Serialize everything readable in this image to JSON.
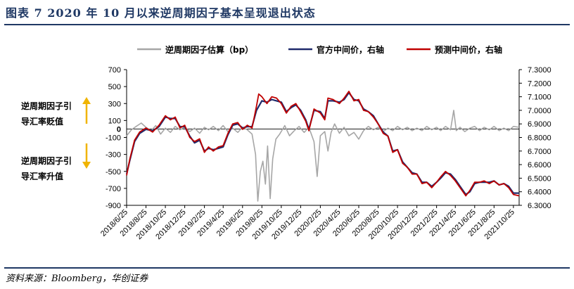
{
  "header": {
    "title": "图表 7   2020 年 10 月以来逆周期因子基本呈现退出状态"
  },
  "footer": {
    "source": "资料来源：Bloomberg，华创证券"
  },
  "annotations": {
    "upper": [
      "逆周期因子引",
      "导汇率贬值"
    ],
    "lower": [
      "逆周期因子引",
      "导汇率升值"
    ],
    "arrow_color": "#f0b400"
  },
  "chart_data": {
    "type": "line",
    "title": "",
    "xlabel": "",
    "ylabel": "",
    "legend_position": "top",
    "grid": false,
    "x_tick_labels": [
      "2018/6/25",
      "2018/8/25",
      "2018/10/25",
      "2018/12/25",
      "2019/2/25",
      "2019/4/25",
      "2019/6/25",
      "2019/8/25",
      "2019/10/25",
      "2019/12/25",
      "2020/2/25",
      "2020/4/25",
      "2020/6/25",
      "2020/8/25",
      "2020/10/25",
      "2020/12/25",
      "2021/2/25",
      "2021/4/25",
      "2021/6/25",
      "2021/8/25",
      "2021/10/25"
    ],
    "x_range": [
      "2018-06-25",
      "2021-11-12"
    ],
    "y_left": {
      "min": -900,
      "max": 700,
      "step": 100,
      "ticks": [
        700,
        500,
        300,
        100,
        -100,
        -300,
        -500,
        -700,
        -900
      ],
      "extra_tick": 0
    },
    "y_right": {
      "min": 6.3,
      "max": 7.3,
      "step": 0.1,
      "ticks": [
        "7.3000",
        "7.2000",
        "7.1000",
        "7.0000",
        "6.9000",
        "6.8000",
        "6.7000",
        "6.6000",
        "6.5000",
        "6.4000",
        "6.3000"
      ]
    },
    "series": [
      {
        "name": "逆周期因子估算（bp）",
        "axis": "left",
        "color": "#a6a6a6",
        "points": [
          [
            "2018-06-25",
            -80
          ],
          [
            "2018-07-10",
            -10
          ],
          [
            "2018-07-25",
            30
          ],
          [
            "2018-08-10",
            70
          ],
          [
            "2018-08-25",
            20
          ],
          [
            "2018-09-10",
            -20
          ],
          [
            "2018-09-25",
            40
          ],
          [
            "2018-10-10",
            -60
          ],
          [
            "2018-10-25",
            10
          ],
          [
            "2018-11-10",
            -40
          ],
          [
            "2018-11-25",
            30
          ],
          [
            "2018-12-10",
            -10
          ],
          [
            "2018-12-25",
            20
          ],
          [
            "2019-01-10",
            -30
          ],
          [
            "2019-01-25",
            10
          ],
          [
            "2019-02-10",
            -50
          ],
          [
            "2019-02-25",
            20
          ],
          [
            "2019-03-10",
            -10
          ],
          [
            "2019-03-25",
            30
          ],
          [
            "2019-04-10",
            -20
          ],
          [
            "2019-04-25",
            40
          ],
          [
            "2019-05-10",
            -30
          ],
          [
            "2019-05-25",
            10
          ],
          [
            "2019-06-10",
            -40
          ],
          [
            "2019-06-25",
            20
          ],
          [
            "2019-07-10",
            -10
          ],
          [
            "2019-07-25",
            -60
          ],
          [
            "2019-08-05",
            -300
          ],
          [
            "2019-08-12",
            -850
          ],
          [
            "2019-08-20",
            -500
          ],
          [
            "2019-08-28",
            -380
          ],
          [
            "2019-09-05",
            -650
          ],
          [
            "2019-09-12",
            -200
          ],
          [
            "2019-09-20",
            -820
          ],
          [
            "2019-09-28",
            -350
          ],
          [
            "2019-10-08",
            -120
          ],
          [
            "2019-10-20",
            -60
          ],
          [
            "2019-11-05",
            40
          ],
          [
            "2019-11-20",
            -80
          ],
          [
            "2019-12-05",
            -20
          ],
          [
            "2019-12-20",
            30
          ],
          [
            "2020-01-05",
            -40
          ],
          [
            "2020-01-20",
            20
          ],
          [
            "2020-02-05",
            -150
          ],
          [
            "2020-02-15",
            -560
          ],
          [
            "2020-02-25",
            -80
          ],
          [
            "2020-03-10",
            -30
          ],
          [
            "2020-03-20",
            -260
          ],
          [
            "2020-03-30",
            -40
          ],
          [
            "2020-04-10",
            60
          ],
          [
            "2020-04-25",
            -50
          ],
          [
            "2020-05-10",
            20
          ],
          [
            "2020-05-25",
            -80
          ],
          [
            "2020-06-10",
            -40
          ],
          [
            "2020-06-25",
            -120
          ],
          [
            "2020-07-10",
            -20
          ],
          [
            "2020-07-25",
            30
          ],
          [
            "2020-08-10",
            -10
          ],
          [
            "2020-08-25",
            20
          ],
          [
            "2020-09-10",
            -30
          ],
          [
            "2020-09-25",
            10
          ],
          [
            "2020-10-10",
            -20
          ],
          [
            "2020-10-25",
            30
          ],
          [
            "2020-11-10",
            -10
          ],
          [
            "2020-11-25",
            20
          ],
          [
            "2020-12-10",
            -20
          ],
          [
            "2020-12-25",
            10
          ],
          [
            "2021-01-10",
            -20
          ],
          [
            "2021-01-25",
            30
          ],
          [
            "2021-02-10",
            -10
          ],
          [
            "2021-02-25",
            20
          ],
          [
            "2021-03-10",
            -20
          ],
          [
            "2021-03-25",
            30
          ],
          [
            "2021-04-10",
            -10
          ],
          [
            "2021-04-20",
            220
          ],
          [
            "2021-04-28",
            -20
          ],
          [
            "2021-05-10",
            20
          ],
          [
            "2021-05-25",
            -30
          ],
          [
            "2021-06-10",
            10
          ],
          [
            "2021-06-25",
            30
          ],
          [
            "2021-07-10",
            -20
          ],
          [
            "2021-07-25",
            20
          ],
          [
            "2021-08-10",
            -10
          ],
          [
            "2021-08-25",
            30
          ],
          [
            "2021-09-10",
            -20
          ],
          [
            "2021-09-25",
            10
          ],
          [
            "2021-10-10",
            -20
          ],
          [
            "2021-10-25",
            30
          ],
          [
            "2021-11-12",
            20
          ]
        ]
      },
      {
        "name": "官方中间价，右轴",
        "axis": "right",
        "color": "#1f2a6b",
        "points": [
          [
            "2018-06-25",
            6.53
          ],
          [
            "2018-07-05",
            6.63
          ],
          [
            "2018-07-20",
            6.77
          ],
          [
            "2018-08-05",
            6.83
          ],
          [
            "2018-08-25",
            6.86
          ],
          [
            "2018-09-15",
            6.85
          ],
          [
            "2018-10-05",
            6.88
          ],
          [
            "2018-10-25",
            6.95
          ],
          [
            "2018-11-10",
            6.94
          ],
          [
            "2018-11-25",
            6.94
          ],
          [
            "2018-12-10",
            6.88
          ],
          [
            "2018-12-25",
            6.88
          ],
          [
            "2019-01-10",
            6.81
          ],
          [
            "2019-01-25",
            6.76
          ],
          [
            "2019-02-10",
            6.78
          ],
          [
            "2019-02-25",
            6.7
          ],
          [
            "2019-03-10",
            6.72
          ],
          [
            "2019-03-25",
            6.71
          ],
          [
            "2019-04-10",
            6.72
          ],
          [
            "2019-04-25",
            6.73
          ],
          [
            "2019-05-10",
            6.82
          ],
          [
            "2019-05-25",
            6.89
          ],
          [
            "2019-06-10",
            6.9
          ],
          [
            "2019-06-25",
            6.87
          ],
          [
            "2019-07-10",
            6.88
          ],
          [
            "2019-07-25",
            6.88
          ],
          [
            "2019-08-08",
            7.0
          ],
          [
            "2019-08-25",
            7.07
          ],
          [
            "2019-09-10",
            7.06
          ],
          [
            "2019-09-25",
            7.08
          ],
          [
            "2019-10-10",
            7.07
          ],
          [
            "2019-10-25",
            7.06
          ],
          [
            "2019-11-10",
            6.99
          ],
          [
            "2019-11-25",
            7.02
          ],
          [
            "2019-12-10",
            7.04
          ],
          [
            "2019-12-25",
            7.0
          ],
          [
            "2020-01-10",
            6.93
          ],
          [
            "2020-01-20",
            6.86
          ],
          [
            "2020-02-05",
            7.0
          ],
          [
            "2020-02-25",
            6.99
          ],
          [
            "2020-03-10",
            6.94
          ],
          [
            "2020-03-20",
            7.07
          ],
          [
            "2020-04-05",
            7.07
          ],
          [
            "2020-04-25",
            7.06
          ],
          [
            "2020-05-10",
            7.08
          ],
          [
            "2020-05-25",
            7.13
          ],
          [
            "2020-06-10",
            7.08
          ],
          [
            "2020-06-25",
            7.07
          ],
          [
            "2020-07-10",
            7.01
          ],
          [
            "2020-07-25",
            6.99
          ],
          [
            "2020-08-10",
            6.96
          ],
          [
            "2020-08-25",
            6.9
          ],
          [
            "2020-09-10",
            6.84
          ],
          [
            "2020-09-25",
            6.81
          ],
          [
            "2020-10-10",
            6.7
          ],
          [
            "2020-10-25",
            6.71
          ],
          [
            "2020-11-10",
            6.62
          ],
          [
            "2020-11-25",
            6.58
          ],
          [
            "2020-12-10",
            6.54
          ],
          [
            "2020-12-25",
            6.53
          ],
          [
            "2021-01-10",
            6.47
          ],
          [
            "2021-01-25",
            6.47
          ],
          [
            "2021-02-10",
            6.44
          ],
          [
            "2021-02-25",
            6.47
          ],
          [
            "2021-03-10",
            6.5
          ],
          [
            "2021-03-25",
            6.54
          ],
          [
            "2021-04-10",
            6.53
          ],
          [
            "2021-04-25",
            6.49
          ],
          [
            "2021-05-10",
            6.44
          ],
          [
            "2021-05-28",
            6.38
          ],
          [
            "2021-06-10",
            6.4
          ],
          [
            "2021-06-25",
            6.46
          ],
          [
            "2021-07-10",
            6.47
          ],
          [
            "2021-07-25",
            6.47
          ],
          [
            "2021-08-10",
            6.47
          ],
          [
            "2021-08-25",
            6.48
          ],
          [
            "2021-09-10",
            6.45
          ],
          [
            "2021-09-25",
            6.46
          ],
          [
            "2021-10-10",
            6.44
          ],
          [
            "2021-10-25",
            6.39
          ],
          [
            "2021-11-12",
            6.39
          ]
        ]
      },
      {
        "name": "预测中间价，右轴",
        "axis": "right",
        "color": "#c00000",
        "points": [
          [
            "2018-06-25",
            6.52
          ],
          [
            "2018-07-05",
            6.64
          ],
          [
            "2018-07-20",
            6.78
          ],
          [
            "2018-08-05",
            6.84
          ],
          [
            "2018-08-25",
            6.87
          ],
          [
            "2018-09-15",
            6.84
          ],
          [
            "2018-10-05",
            6.89
          ],
          [
            "2018-10-25",
            6.96
          ],
          [
            "2018-11-10",
            6.93
          ],
          [
            "2018-11-25",
            6.95
          ],
          [
            "2018-12-10",
            6.87
          ],
          [
            "2018-12-25",
            6.89
          ],
          [
            "2019-01-10",
            6.8
          ],
          [
            "2019-01-25",
            6.77
          ],
          [
            "2019-02-10",
            6.79
          ],
          [
            "2019-02-25",
            6.69
          ],
          [
            "2019-03-10",
            6.73
          ],
          [
            "2019-03-25",
            6.7
          ],
          [
            "2019-04-10",
            6.73
          ],
          [
            "2019-04-25",
            6.74
          ],
          [
            "2019-05-10",
            6.83
          ],
          [
            "2019-05-25",
            6.9
          ],
          [
            "2019-06-10",
            6.91
          ],
          [
            "2019-06-25",
            6.86
          ],
          [
            "2019-07-10",
            6.89
          ],
          [
            "2019-07-25",
            6.87
          ],
          [
            "2019-08-08",
            7.03
          ],
          [
            "2019-08-15",
            7.12
          ],
          [
            "2019-08-25",
            7.1
          ],
          [
            "2019-09-10",
            7.05
          ],
          [
            "2019-09-25",
            7.1
          ],
          [
            "2019-10-10",
            7.09
          ],
          [
            "2019-10-25",
            7.05
          ],
          [
            "2019-11-10",
            6.98
          ],
          [
            "2019-11-25",
            7.03
          ],
          [
            "2019-12-10",
            7.05
          ],
          [
            "2019-12-25",
            6.99
          ],
          [
            "2020-01-10",
            6.92
          ],
          [
            "2020-01-20",
            6.85
          ],
          [
            "2020-02-05",
            7.01
          ],
          [
            "2020-02-25",
            6.98
          ],
          [
            "2020-03-10",
            6.93
          ],
          [
            "2020-03-20",
            7.09
          ],
          [
            "2020-04-05",
            7.08
          ],
          [
            "2020-04-25",
            7.05
          ],
          [
            "2020-05-10",
            7.09
          ],
          [
            "2020-05-25",
            7.14
          ],
          [
            "2020-06-10",
            7.07
          ],
          [
            "2020-06-25",
            7.08
          ],
          [
            "2020-07-10",
            7.0
          ],
          [
            "2020-07-25",
            6.99
          ],
          [
            "2020-08-10",
            6.95
          ],
          [
            "2020-08-25",
            6.9
          ],
          [
            "2020-09-10",
            6.83
          ],
          [
            "2020-09-25",
            6.81
          ],
          [
            "2020-10-10",
            6.69
          ],
          [
            "2020-10-25",
            6.71
          ],
          [
            "2020-11-10",
            6.61
          ],
          [
            "2020-11-25",
            6.58
          ],
          [
            "2020-12-10",
            6.53
          ],
          [
            "2020-12-25",
            6.53
          ],
          [
            "2021-01-10",
            6.46
          ],
          [
            "2021-01-25",
            6.47
          ],
          [
            "2021-02-10",
            6.43
          ],
          [
            "2021-02-25",
            6.47
          ],
          [
            "2021-03-10",
            6.51
          ],
          [
            "2021-03-25",
            6.55
          ],
          [
            "2021-04-10",
            6.52
          ],
          [
            "2021-04-25",
            6.48
          ],
          [
            "2021-05-10",
            6.43
          ],
          [
            "2021-05-28",
            6.37
          ],
          [
            "2021-06-10",
            6.41
          ],
          [
            "2021-06-25",
            6.47
          ],
          [
            "2021-07-10",
            6.47
          ],
          [
            "2021-07-25",
            6.48
          ],
          [
            "2021-08-10",
            6.46
          ],
          [
            "2021-08-25",
            6.48
          ],
          [
            "2021-09-10",
            6.45
          ],
          [
            "2021-09-25",
            6.46
          ],
          [
            "2021-10-10",
            6.43
          ],
          [
            "2021-10-25",
            6.38
          ],
          [
            "2021-11-12",
            6.37
          ]
        ]
      }
    ]
  }
}
